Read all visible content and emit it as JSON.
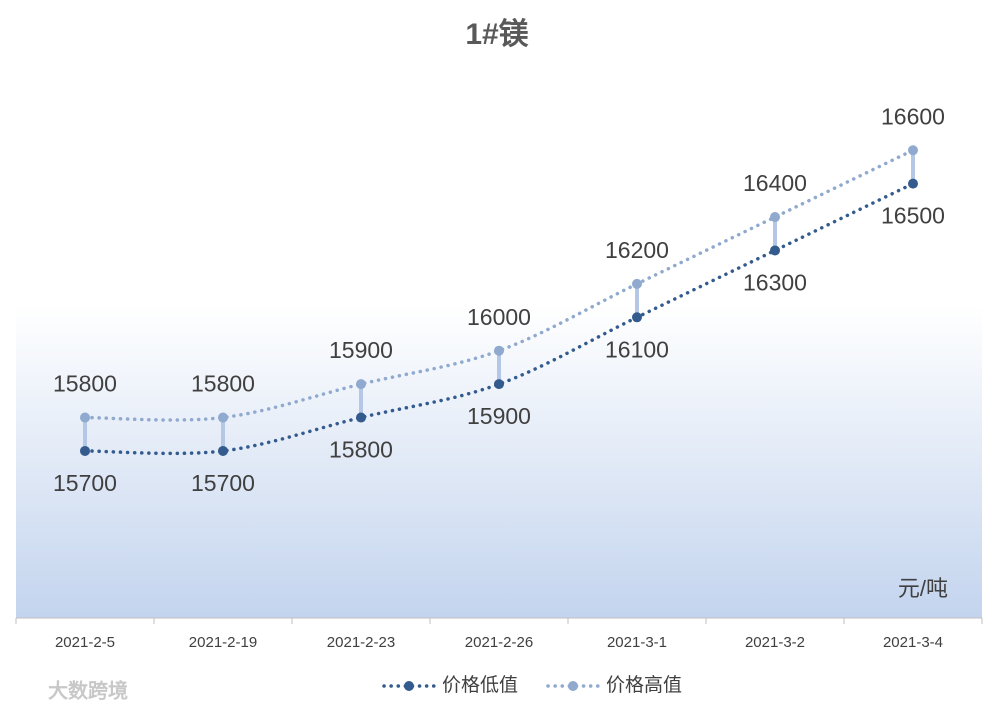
{
  "chart_data": {
    "type": "line",
    "title": "1#镁",
    "unit_label": "元/吨",
    "watermark": "大数跨境",
    "categories": [
      "2021-2-5",
      "2021-2-19",
      "2021-2-23",
      "2021-2-26",
      "2021-3-1",
      "2021-3-2",
      "2021-3-4"
    ],
    "series": [
      {
        "name": "价格低值",
        "color": "#335b8e",
        "values": [
          15700,
          15700,
          15800,
          15900,
          16100,
          16300,
          16500
        ]
      },
      {
        "name": "价格高值",
        "color": "#8fa9cf",
        "values": [
          15800,
          15800,
          15900,
          16000,
          16200,
          16400,
          16600
        ]
      }
    ],
    "ylim": [
      15200,
      16900
    ],
    "high_low_lines": true,
    "legend": "bottom"
  }
}
